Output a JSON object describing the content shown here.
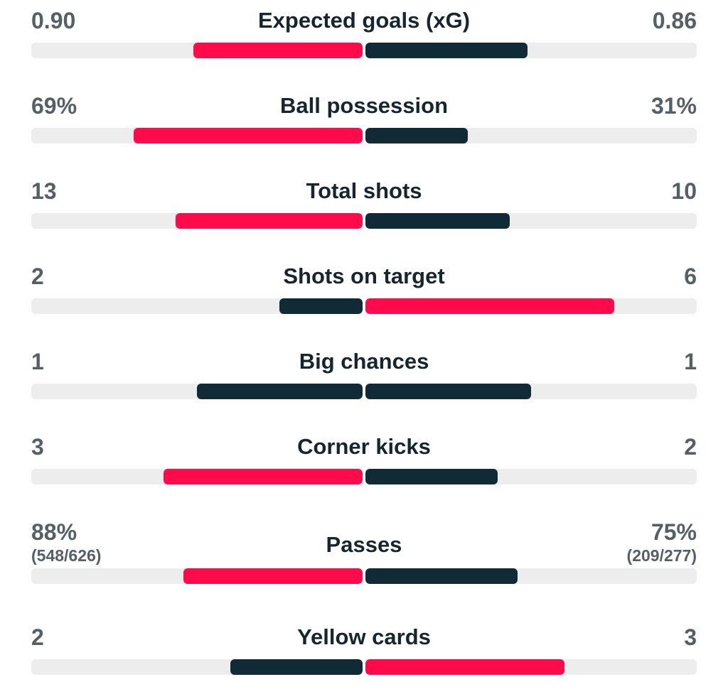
{
  "colors": {
    "highlight": "#ff0a4b",
    "dark": "#102a36",
    "track": "#ededed"
  },
  "stats": [
    {
      "label": "Expected goals (xG)",
      "home": "0.90",
      "away": "0.86",
      "home_fill": 0.51,
      "away_fill": 0.49,
      "home_color": "highlight",
      "away_color": "dark"
    },
    {
      "label": "Ball possession",
      "home": "69%",
      "away": "31%",
      "home_fill": 0.69,
      "away_fill": 0.31,
      "home_color": "highlight",
      "away_color": "dark"
    },
    {
      "label": "Total shots",
      "home": "13",
      "away": "10",
      "home_fill": 0.565,
      "away_fill": 0.435,
      "home_color": "highlight",
      "away_color": "dark"
    },
    {
      "label": "Shots on target",
      "home": "2",
      "away": "6",
      "home_fill": 0.25,
      "away_fill": 0.75,
      "home_color": "dark",
      "away_color": "highlight"
    },
    {
      "label": "Big chances",
      "home": "1",
      "away": "1",
      "home_fill": 0.5,
      "away_fill": 0.5,
      "home_color": "dark",
      "away_color": "dark"
    },
    {
      "label": "Corner kicks",
      "home": "3",
      "away": "2",
      "home_fill": 0.6,
      "away_fill": 0.4,
      "home_color": "highlight",
      "away_color": "dark"
    },
    {
      "label": "Passes",
      "home": "88%",
      "home_sub": "(548/626)",
      "away": "75%",
      "away_sub": "(209/277)",
      "home_fill": 0.54,
      "away_fill": 0.46,
      "home_color": "highlight",
      "away_color": "dark"
    },
    {
      "label": "Yellow cards",
      "home": "2",
      "away": "3",
      "home_fill": 0.4,
      "away_fill": 0.6,
      "home_color": "dark",
      "away_color": "highlight"
    }
  ]
}
